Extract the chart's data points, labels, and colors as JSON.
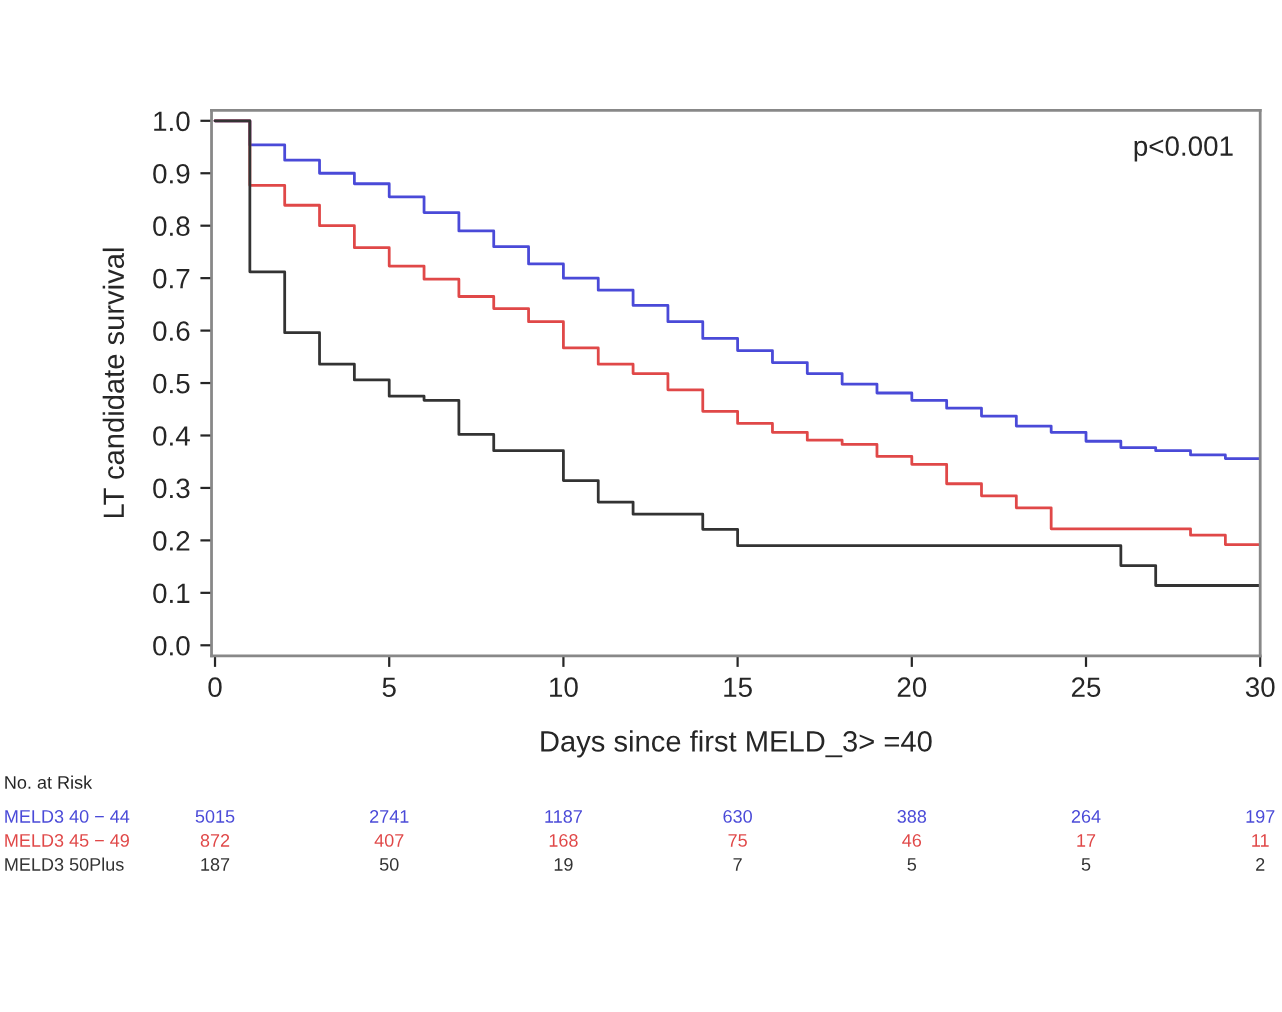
{
  "chart_data": {
    "type": "step",
    "xlabel": "Days since first MELD_3> =40",
    "ylabel": "LT candidate survival",
    "x": [
      0,
      1,
      2,
      3,
      4,
      5,
      6,
      7,
      8,
      9,
      10,
      11,
      12,
      13,
      14,
      15,
      16,
      17,
      18,
      19,
      20,
      21,
      22,
      23,
      24,
      25,
      26,
      27,
      28,
      29,
      30
    ],
    "xlim": [
      -0.1,
      30
    ],
    "xticks": [
      0,
      5,
      10,
      15,
      20,
      25,
      30
    ],
    "ylim": [
      -0.02,
      1.02
    ],
    "yticks": [
      {
        "value": 0,
        "label": "0.0"
      },
      0.1,
      0.2,
      0.3,
      0.4,
      0.5,
      0.6,
      0.7,
      0.8,
      0.9,
      {
        "value": 1,
        "label": "1.0"
      }
    ],
    "grid": false,
    "legend": false,
    "line_style": "solid",
    "marker": "none",
    "series": [
      {
        "name": "MELD3 40 − 44",
        "color": "#4a4ad8",
        "values": [
          1.0,
          0.954,
          0.925,
          0.9,
          0.88,
          0.855,
          0.825,
          0.79,
          0.76,
          0.727,
          0.7,
          0.677,
          0.648,
          0.617,
          0.585,
          0.562,
          0.539,
          0.518,
          0.498,
          0.481,
          0.467,
          0.452,
          0.437,
          0.418,
          0.406,
          0.389,
          0.377,
          0.371,
          0.363,
          0.356,
          0.356
        ]
      },
      {
        "name": "MELD3 45 − 49",
        "color": "#e04848",
        "values": [
          1.0,
          0.877,
          0.839,
          0.8,
          0.758,
          0.723,
          0.698,
          0.665,
          0.642,
          0.617,
          0.567,
          0.536,
          0.518,
          0.487,
          0.446,
          0.423,
          0.406,
          0.391,
          0.383,
          0.36,
          0.345,
          0.308,
          0.285,
          0.262,
          0.222,
          0.222,
          0.222,
          0.222,
          0.21,
          0.192,
          0.192
        ]
      },
      {
        "name": "MELD3 50Plus",
        "color": "#333333",
        "values": [
          1.0,
          0.712,
          0.596,
          0.536,
          0.506,
          0.475,
          0.467,
          0.402,
          0.371,
          0.371,
          0.314,
          0.273,
          0.25,
          0.25,
          0.221,
          0.19,
          0.19,
          0.19,
          0.19,
          0.19,
          0.19,
          0.19,
          0.19,
          0.19,
          0.19,
          0.19,
          0.152,
          0.114,
          0.114,
          0.114,
          0.114
        ]
      }
    ],
    "annotations": [
      "p<0.001",
      "No. at Risk",
      "5015",
      "2741",
      "1187",
      "630",
      "388",
      "264",
      "197",
      "872",
      "407",
      "168",
      "75",
      "46",
      "17",
      "11",
      "187",
      "50",
      "19",
      "7",
      "5",
      "5",
      "2"
    ]
  }
}
